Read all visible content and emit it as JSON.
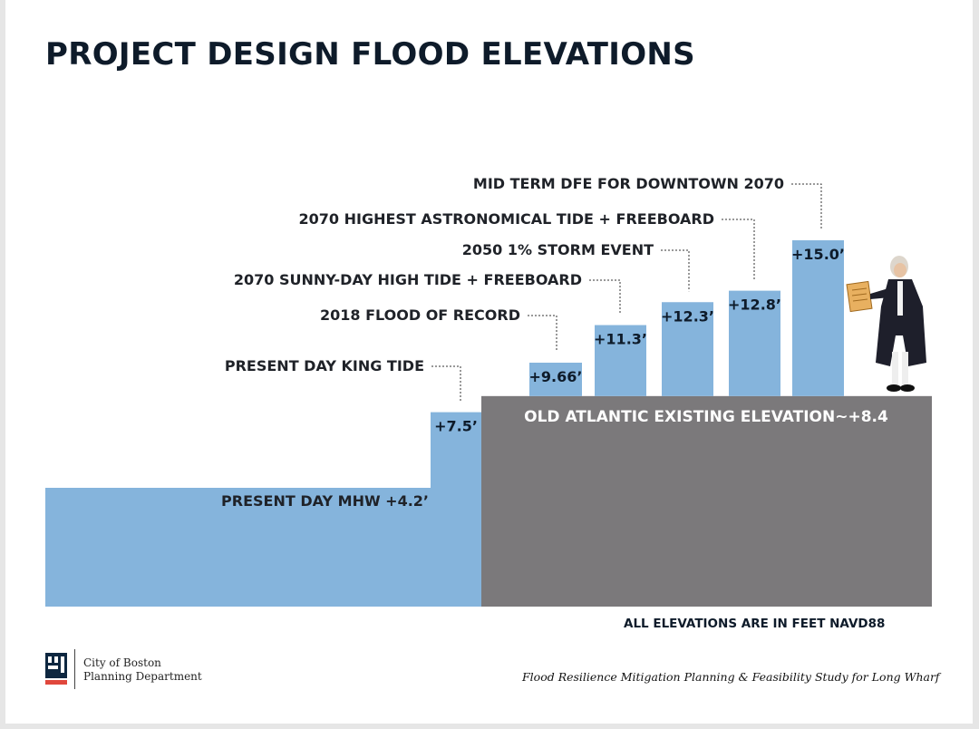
{
  "page": {
    "title": "PROJECT DESIGN FLOOD ELEVATIONS",
    "note": "ALL ELEVATIONS ARE IN FEET NAVD88",
    "logo_line1": "City of Boston",
    "logo_line2": "Planning Department",
    "footer": "Flood Resilience Mitigation Planning & Feasibility Study for Long Wharf"
  },
  "colors": {
    "water": "#85b4dc",
    "existing_ground": "#7b797b",
    "title": "#0e1b2a",
    "logo_red": "#e0473c"
  },
  "chart_data": {
    "type": "bar",
    "title": "PROJECT DESIGN FLOOD ELEVATIONS",
    "units": "feet NAVD88",
    "baseline": {
      "label": "PRESENT DAY MHW +4.2’",
      "value": 4.2
    },
    "existing_elevation": {
      "label": "OLD ATLANTIC EXISTING ELEVATION~+8.4",
      "value": 8.4
    },
    "categories": [
      "PRESENT DAY KING TIDE",
      "2018 FLOOD OF RECORD",
      "2070 SUNNY-DAY HIGH TIDE + FREEBOARD",
      "2050 1% STORM EVENT",
      "2070 HIGHEST ASTRONOMICAL TIDE + FREEBOARD",
      "MID TERM DFE FOR DOWNTOWN 2070"
    ],
    "values": [
      7.5,
      9.66,
      11.3,
      12.3,
      12.8,
      15.0
    ],
    "value_labels": [
      "+7.5’",
      "+9.66’",
      "+11.3’",
      "+12.3’",
      "+12.8’",
      "+15.0’"
    ]
  }
}
